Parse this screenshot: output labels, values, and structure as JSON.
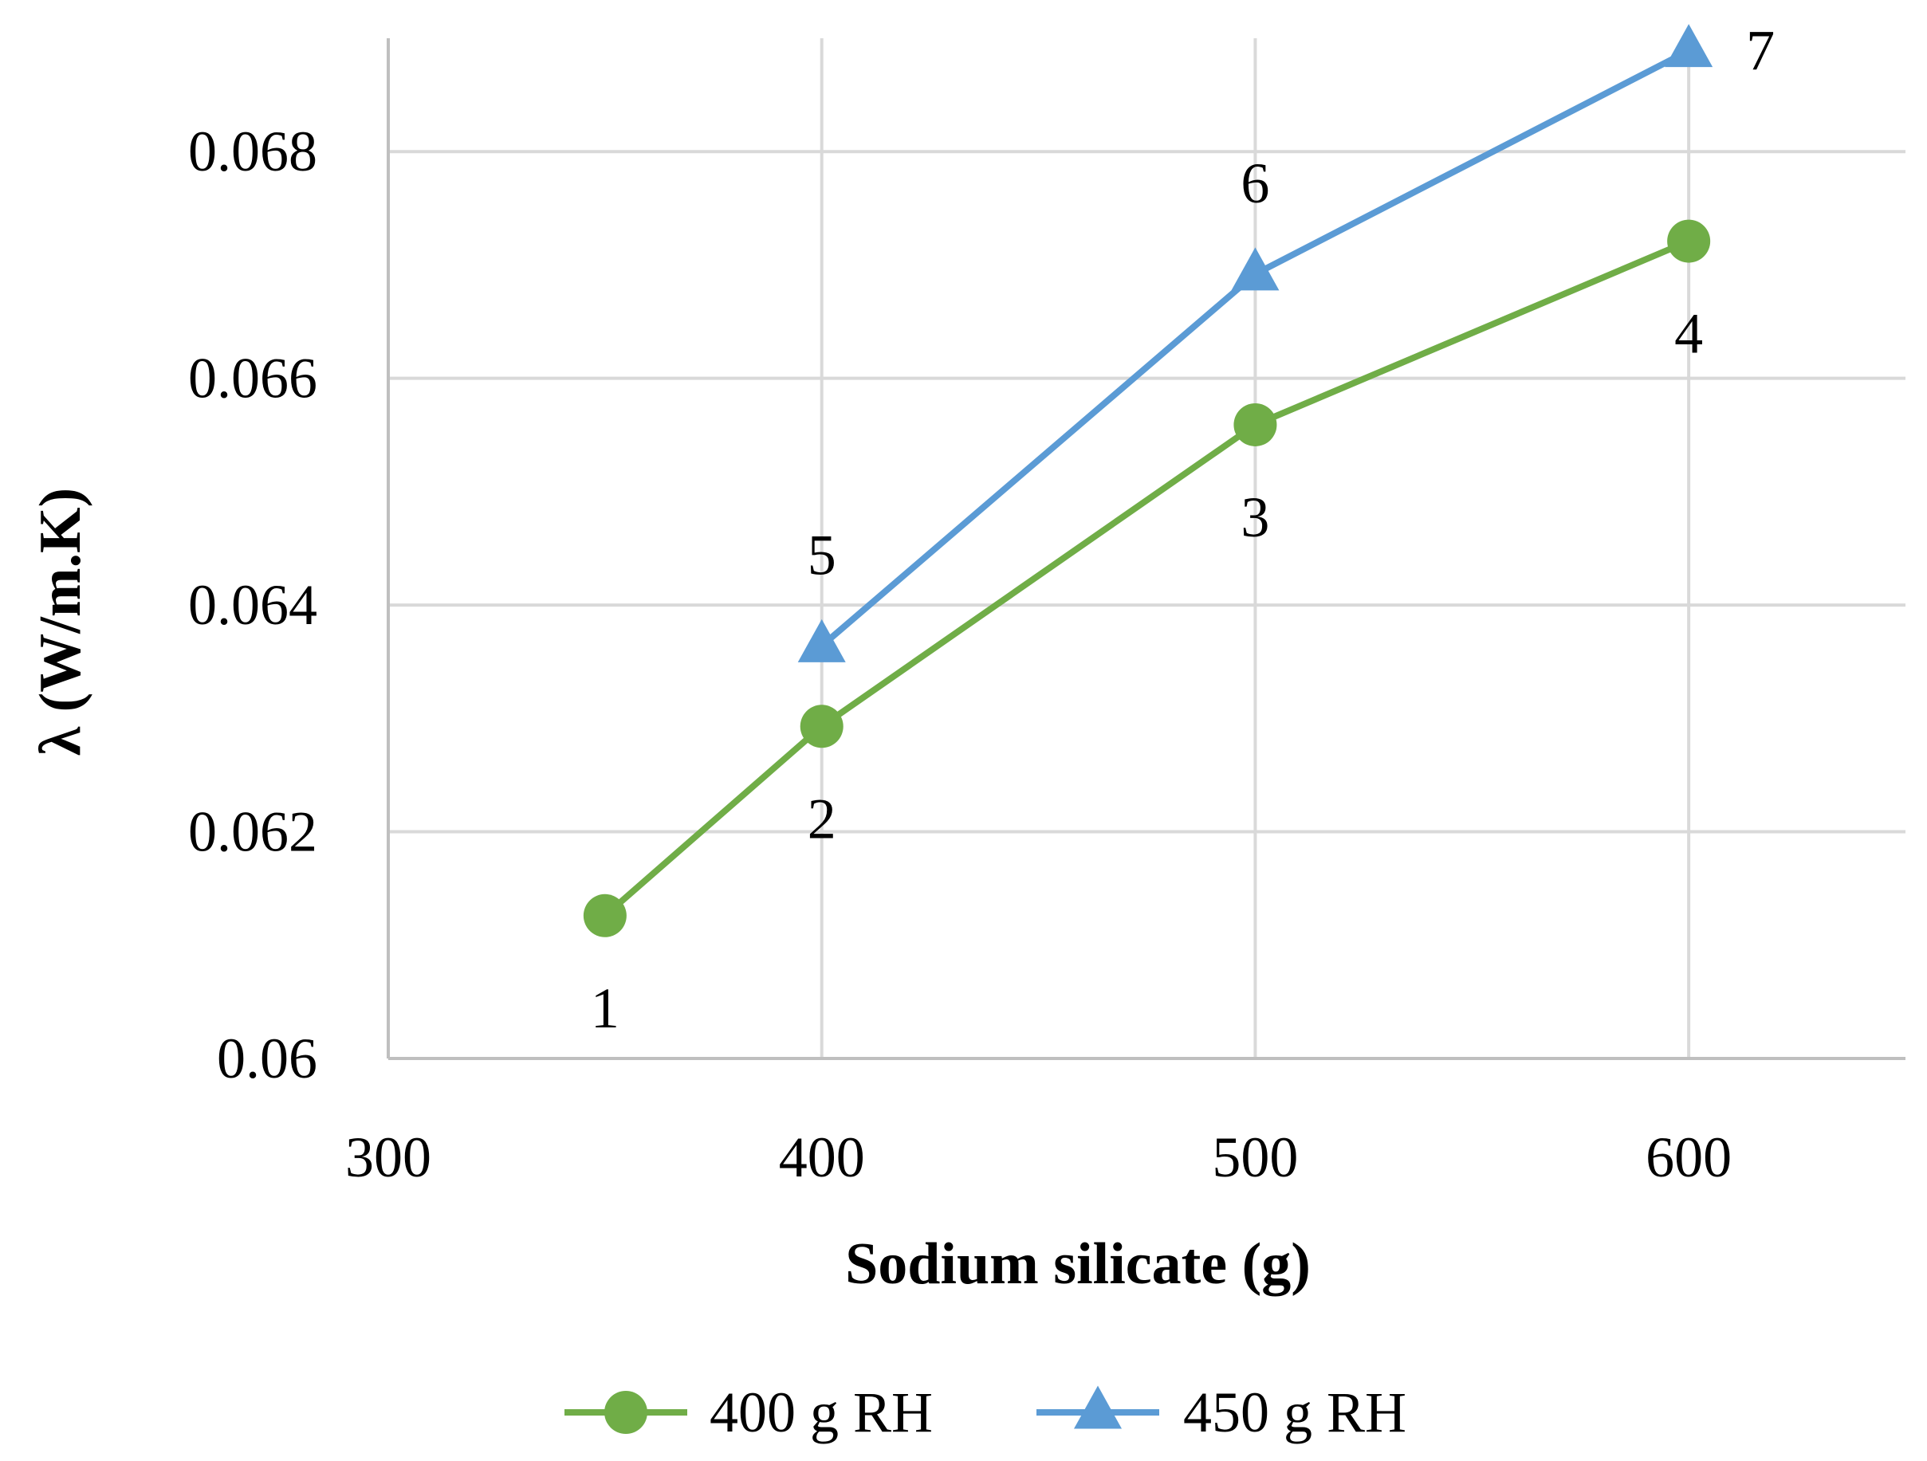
{
  "chart_data": {
    "type": "line",
    "title": "",
    "xlabel": "Sodium silicate (g)",
    "ylabel": "λ (W/m.K)",
    "xlim": [
      300,
      650
    ],
    "ylim": [
      0.06,
      0.069
    ],
    "x_ticks": [
      {
        "value": 300,
        "label": "300"
      },
      {
        "value": 400,
        "label": "400"
      },
      {
        "value": 500,
        "label": "500"
      },
      {
        "value": 600,
        "label": "600"
      }
    ],
    "y_ticks": [
      {
        "value": 0.06,
        "label": "0.06"
      },
      {
        "value": 0.062,
        "label": "0.062"
      },
      {
        "value": 0.064,
        "label": "0.064"
      },
      {
        "value": 0.066,
        "label": "0.066"
      },
      {
        "value": 0.068,
        "label": "0.068"
      }
    ],
    "grid": true,
    "legend_position": "bottom",
    "series": [
      {
        "name": "400 g RH",
        "color": "#70ad47",
        "marker": "circle",
        "points": [
          {
            "x": 350,
            "y": 0.06126,
            "label": "1",
            "label_position": "below"
          },
          {
            "x": 400,
            "y": 0.06293,
            "label": "2",
            "label_position": "below"
          },
          {
            "x": 500,
            "y": 0.06559,
            "label": "3",
            "label_position": "below"
          },
          {
            "x": 600,
            "y": 0.06721,
            "label": "4",
            "label_position": "below"
          }
        ]
      },
      {
        "name": "450 g RH",
        "color": "#5b9bd5",
        "marker": "triangle",
        "points": [
          {
            "x": 400,
            "y": 0.06364,
            "label": "5",
            "label_position": "above"
          },
          {
            "x": 500,
            "y": 0.06692,
            "label": "6",
            "label_position": "above"
          },
          {
            "x": 600,
            "y": 0.06889,
            "label": "7",
            "label_position": "right"
          }
        ]
      }
    ]
  }
}
